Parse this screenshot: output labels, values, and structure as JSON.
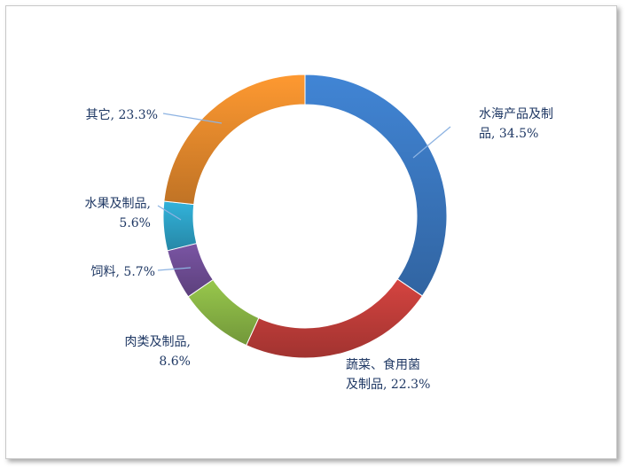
{
  "chart_data": {
    "type": "pie",
    "variant": "donut",
    "slices": [
      {
        "label": "水海产品及制品",
        "value": 34.5,
        "label_lines": [
          "水海产品及制",
          "品, 34.5%"
        ],
        "color": "#3d7dc9"
      },
      {
        "label": "蔬菜、食用菌及制品",
        "value": 22.3,
        "label_lines": [
          "蔬菜、食用菌",
          "及制品, 22.3%"
        ],
        "color": "#c9403c"
      },
      {
        "label": "肉类及制品",
        "value": 8.6,
        "label_lines": [
          "肉类及制品,",
          "8.6%"
        ],
        "color": "#8fbd48"
      },
      {
        "label": "饲料",
        "value": 5.7,
        "label_lines": [
          "饲料, 5.7%"
        ],
        "color": "#73509b"
      },
      {
        "label": "水果及制品",
        "value": 5.6,
        "label_lines": [
          "水果及制品,",
          "5.6%"
        ],
        "color": "#2fa9cf"
      },
      {
        "label": "其它",
        "value": 23.3,
        "label_lines": [
          "其它, 23.3%"
        ],
        "color": "#f0902e"
      }
    ],
    "legend": "none",
    "data_labels": "outside-with-leader-lines"
  }
}
